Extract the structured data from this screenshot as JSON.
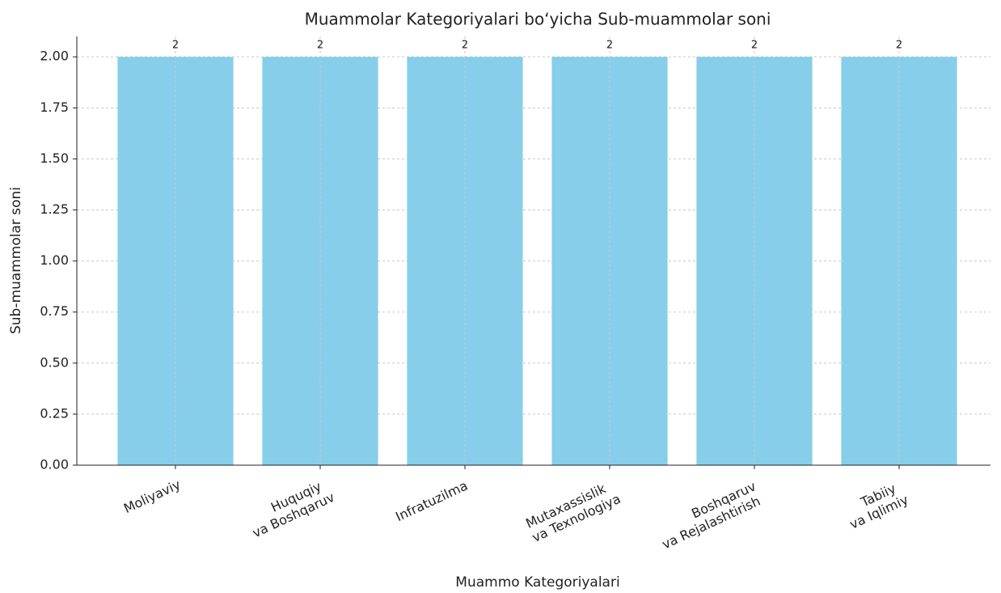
{
  "chart_data": {
    "type": "bar",
    "title": "Muammolar Kategoriyalari bo‘yicha Sub-muammolar soni",
    "x_label": "Muammo Kategoriyalari",
    "y_label": "Sub-muammolar soni",
    "categories": [
      "Moliyaviy",
      "Huquqiy\nva Boshqaruv",
      "Infratuzilma",
      "Mutaxassislik\nva Texnologiya",
      "Boshqaruv\nva Rejalashtirish",
      "Tabiiy\nva Iqlimiy"
    ],
    "values": [
      2,
      2,
      2,
      2,
      2,
      2
    ],
    "color": "#87ceeb",
    "ylim": [
      0,
      2.1
    ],
    "yticks": [
      {
        "value": 0,
        "label": "0.00"
      },
      {
        "value": 0.25,
        "label": "0.25"
      },
      {
        "value": 0.5,
        "label": "0.50"
      },
      {
        "value": 0.75,
        "label": "0.75"
      },
      {
        "value": 1,
        "label": "1.00"
      },
      {
        "value": 1.25,
        "label": "1.25"
      },
      {
        "value": 1.5,
        "label": "1.50"
      },
      {
        "value": 1.75,
        "label": "1.75"
      },
      {
        "value": 2,
        "label": "2.00"
      }
    ],
    "grid": true
  }
}
